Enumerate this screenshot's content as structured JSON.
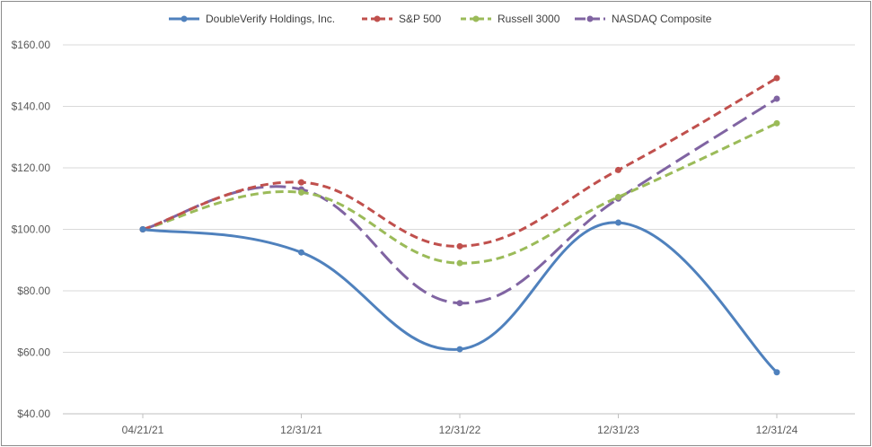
{
  "chart_data": {
    "type": "line",
    "title": "",
    "xlabel": "",
    "ylabel": "",
    "categories": [
      "04/21/21",
      "12/31/21",
      "12/31/22",
      "12/31/23",
      "12/31/24"
    ],
    "ylim": [
      40,
      160
    ],
    "yticks": [
      40,
      60,
      80,
      100,
      120,
      140,
      160
    ],
    "ytick_labels": [
      "$40.00",
      "$60.00",
      "$80.00",
      "$100.00",
      "$120.00",
      "$140.00",
      "$160.00"
    ],
    "grid": "horizontal",
    "legend_position": "top",
    "series": [
      {
        "name": "DoubleVerify Holdings, Inc.",
        "values": [
          100.0,
          92.5,
          61.0,
          102.2,
          53.5
        ],
        "color": "#4f81bd",
        "dash": "solid"
      },
      {
        "name": "S&P 500",
        "values": [
          100.0,
          115.3,
          94.5,
          119.3,
          149.2
        ],
        "color": "#c0504d",
        "dash": "dashed"
      },
      {
        "name": "Russell 3000",
        "values": [
          100.0,
          112.0,
          89.0,
          110.5,
          134.5
        ],
        "color": "#9bbb59",
        "dash": "dashed"
      },
      {
        "name": "NASDAQ Composite",
        "values": [
          100.0,
          113.0,
          76.0,
          110.0,
          142.5
        ],
        "color": "#8064a2",
        "dash": "longdash"
      }
    ]
  }
}
